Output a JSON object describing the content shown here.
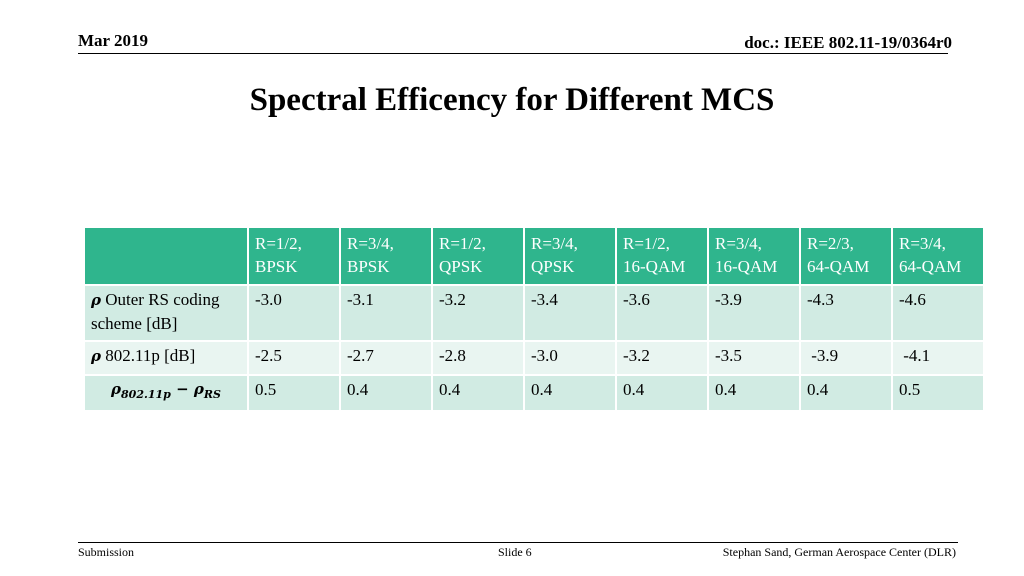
{
  "header": {
    "date": "Mar 2019",
    "doc": "doc.: IEEE 802.11-19/0364r0"
  },
  "title": "Spectral Efficency for Different MCS",
  "table": {
    "columns": [
      {
        "line1": "R=1/2,",
        "line2": "BPSK"
      },
      {
        "line1": "R=3/4,",
        "line2": "BPSK"
      },
      {
        "line1": "R=1/2,",
        "line2": "QPSK"
      },
      {
        "line1": "R=3/4,",
        "line2": "QPSK"
      },
      {
        "line1": "R=1/2,",
        "line2": "16-QAM"
      },
      {
        "line1": "R=3/4,",
        "line2": "16-QAM"
      },
      {
        "line1": "R=2/3,",
        "line2": "64-QAM"
      },
      {
        "line1": "R=3/4,",
        "line2": "64-QAM"
      }
    ],
    "rows": [
      {
        "symbol": "ρ",
        "label": "Outer RS coding scheme [dB]",
        "values": [
          "-3.0",
          "-3.1",
          "-3.2",
          "-3.4",
          "-3.6",
          "-3.9",
          "-4.3",
          "-4.6"
        ]
      },
      {
        "symbol": "ρ",
        "label": "802.11p [dB]",
        "values": [
          "-2.5",
          "-2.7",
          "-2.8",
          "-3.0",
          "-3.2",
          "-3.5",
          " -3.9",
          " -4.1"
        ]
      },
      {
        "formula": {
          "rho1": "ρ",
          "sub1": "802.11p",
          "minus": "−",
          "rho2": "ρ",
          "sub2": "RS"
        },
        "values": [
          "0.5",
          "0.4",
          "0.4",
          "0.4",
          "0.4",
          "0.4",
          "0.4",
          "0.5"
        ]
      }
    ]
  },
  "footer": {
    "left": "Submission",
    "center": "Slide 6",
    "right": "Stephan Sand, German Aerospace Center (DLR)"
  }
}
